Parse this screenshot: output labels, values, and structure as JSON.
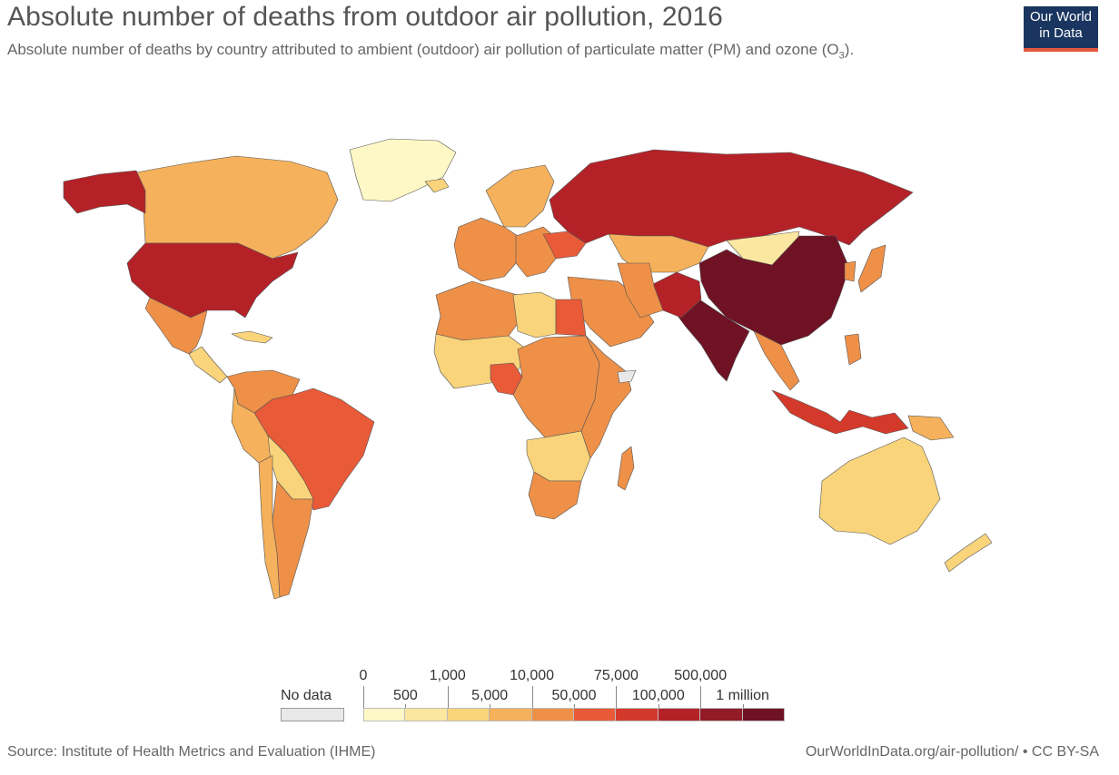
{
  "title": "Absolute number of deaths from outdoor air pollution, 2016",
  "subtitle": "Absolute number of deaths by country attributed to ambient (outdoor) air pollution of particulate matter (PM) and ozone (O",
  "subtitle_sub": "3",
  "subtitle_end": ").",
  "logo": {
    "line1": "Our World",
    "line2": "in Data"
  },
  "legend": {
    "no_data_label": "No data",
    "no_data_color": "#e8e8e8",
    "top_labels": [
      "0",
      "1,000",
      "10,000",
      "75,000",
      "500,000"
    ],
    "bottom_labels": [
      "500",
      "5,000",
      "50,000",
      "100,000",
      "1 million"
    ],
    "colors": [
      "#fef8c6",
      "#fce7a0",
      "#f9d47a",
      "#f5b15b",
      "#ee9048",
      "#e85a38",
      "#d43a2b",
      "#b42228",
      "#911c27",
      "#6e1224"
    ]
  },
  "source": "Source: Institute of Health Metrics and Evaluation (IHME)",
  "attribution": "OurWorldInData.org/air-pollution/ • CC BY-SA",
  "regions": [
    {
      "name": "Canada",
      "color": "#f5b15b"
    },
    {
      "name": "Greenland",
      "color": "#fef8c6"
    },
    {
      "name": "Alaska",
      "color": "#b42228"
    },
    {
      "name": "United States",
      "color": "#b42228"
    },
    {
      "name": "Mexico",
      "color": "#ee9048"
    },
    {
      "name": "Central America",
      "color": "#f9d47a"
    },
    {
      "name": "Caribbean",
      "color": "#f9d47a"
    },
    {
      "name": "Colombia Venezuela",
      "color": "#ee9048"
    },
    {
      "name": "Brazil",
      "color": "#e85a38"
    },
    {
      "name": "Peru",
      "color": "#f5b15b"
    },
    {
      "name": "Bolivia Paraguay",
      "color": "#f9d47a"
    },
    {
      "name": "Argentina",
      "color": "#ee9048"
    },
    {
      "name": "Chile",
      "color": "#f5b15b"
    },
    {
      "name": "Iceland",
      "color": "#f9d47a"
    },
    {
      "name": "Scandinavia",
      "color": "#f5b15b"
    },
    {
      "name": "Western Europe",
      "color": "#ee9048"
    },
    {
      "name": "Eastern Europe",
      "color": "#ee9048"
    },
    {
      "name": "Ukraine",
      "color": "#e85a38"
    },
    {
      "name": "Russia",
      "color": "#b42228"
    },
    {
      "name": "Kazakhstan",
      "color": "#f5b15b"
    },
    {
      "name": "Mongolia",
      "color": "#fce7a0"
    },
    {
      "name": "China",
      "color": "#6e1224"
    },
    {
      "name": "India",
      "color": "#6e1224"
    },
    {
      "name": "Pakistan",
      "color": "#b42228"
    },
    {
      "name": "Middle East",
      "color": "#ee9048"
    },
    {
      "name": "Iran Afghanistan",
      "color": "#ee9048"
    },
    {
      "name": "Japan",
      "color": "#ee9048"
    },
    {
      "name": "Korea",
      "color": "#ee9048"
    },
    {
      "name": "Southeast Asia",
      "color": "#ee9048"
    },
    {
      "name": "Indonesia",
      "color": "#d43a2b"
    },
    {
      "name": "Philippines",
      "color": "#ee9048"
    },
    {
      "name": "Papua New Guinea",
      "color": "#f5b15b"
    },
    {
      "name": "Australia",
      "color": "#f9d47a"
    },
    {
      "name": "New Zealand",
      "color": "#f9d47a"
    },
    {
      "name": "North Africa",
      "color": "#ee9048"
    },
    {
      "name": "Libya",
      "color": "#f9d47a"
    },
    {
      "name": "Egypt",
      "color": "#e85a38"
    },
    {
      "name": "West Africa",
      "color": "#f9d47a"
    },
    {
      "name": "Nigeria",
      "color": "#e85a38"
    },
    {
      "name": "Central Africa",
      "color": "#ee9048"
    },
    {
      "name": "East Africa",
      "color": "#ee9048"
    },
    {
      "name": "Somalia",
      "color": "#e8e8e8"
    },
    {
      "name": "Southern Africa",
      "color": "#f9d47a"
    },
    {
      "name": "South Africa",
      "color": "#ee9048"
    },
    {
      "name": "Madagascar",
      "color": "#ee9048"
    }
  ]
}
